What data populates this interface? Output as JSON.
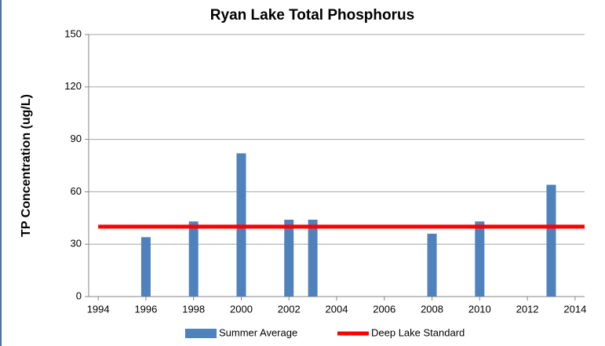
{
  "chart_data": {
    "type": "bar",
    "title": "Ryan Lake Total Phosphorus",
    "y_label": "TP Concentration (ug/L)",
    "xlim": [
      1993.6,
      2014.4
    ],
    "xticks": [
      1994,
      1996,
      1998,
      2000,
      2002,
      2004,
      2006,
      2008,
      2010,
      2012,
      2014
    ],
    "ylim": [
      0,
      150
    ],
    "yticks": [
      0,
      30,
      60,
      90,
      120,
      150
    ],
    "grid": true,
    "legend": "bottom",
    "series": [
      {
        "name": "Summer Average",
        "type": "bar",
        "color": "#4f81bd",
        "x": [
          1996,
          1998,
          2000,
          2002,
          2003,
          2008,
          2010,
          2013
        ],
        "values": [
          34,
          43,
          82,
          44,
          44,
          36,
          43,
          64
        ]
      },
      {
        "name": "Deep Lake Standard",
        "type": "line",
        "color": "#ff0000",
        "x": [
          1994,
          2014.4
        ],
        "values": [
          40,
          40
        ]
      }
    ]
  }
}
